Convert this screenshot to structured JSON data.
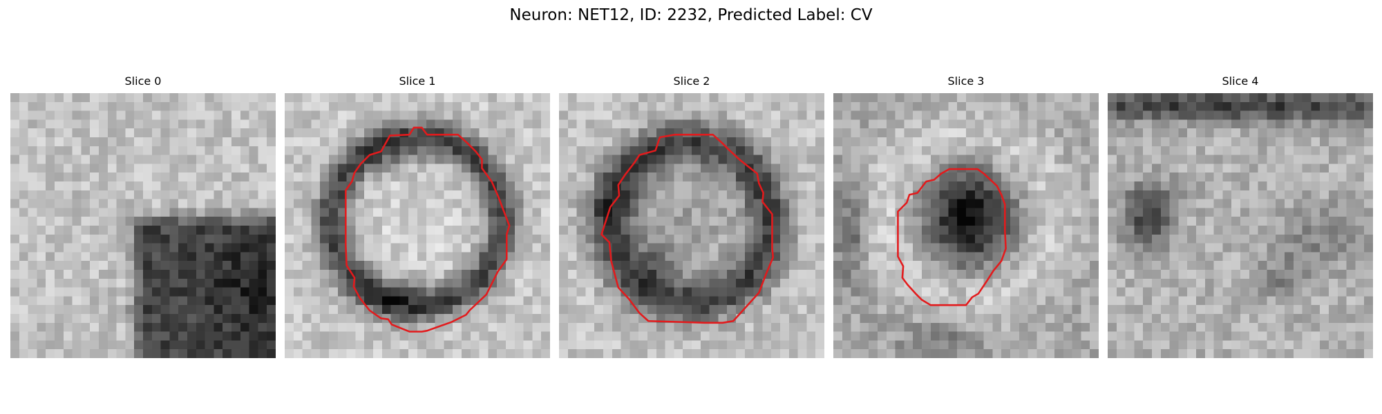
{
  "figure": {
    "title": "Neuron: NET12, ID: 2232, Predicted Label: CV"
  },
  "slices": [
    {
      "title": "Slice 0",
      "has_contour": false
    },
    {
      "title": "Slice 1",
      "has_contour": true
    },
    {
      "title": "Slice 2",
      "has_contour": true
    },
    {
      "title": "Slice 3",
      "has_contour": true
    },
    {
      "title": "Slice 4",
      "has_contour": false
    }
  ],
  "colors": {
    "contour": "#e31a1c",
    "background": "#ffffff"
  }
}
